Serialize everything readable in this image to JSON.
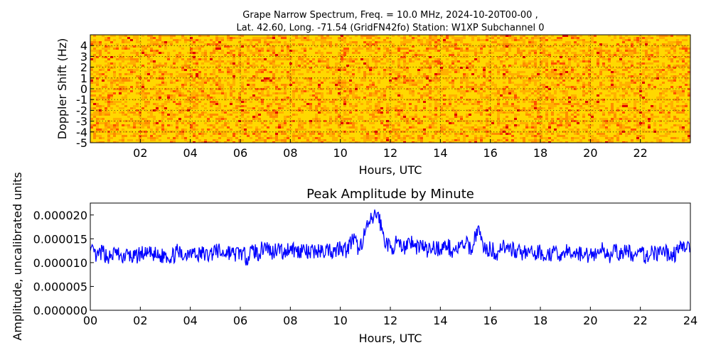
{
  "chart_data": [
    {
      "type": "heatmap",
      "title_line1": "Grape Narrow Spectrum, Freq. = 10.0 MHz, 2024-10-20T00-00 ,",
      "title_line2": "Lat.  42.60, Long. -71.54 (GridFN42fo) Station: W1XP Subchannel 0",
      "xlabel": "Hours, UTC",
      "ylabel": "Doppler Shift (Hz)",
      "xlim": [
        0,
        24
      ],
      "ylim": [
        -5,
        5
      ],
      "xticks": [
        "02",
        "04",
        "06",
        "08",
        "10",
        "12",
        "14",
        "16",
        "18",
        "20",
        "22"
      ],
      "xtick_values": [
        2,
        4,
        6,
        8,
        10,
        12,
        14,
        16,
        18,
        20,
        22
      ],
      "yticks": [
        "4",
        "3",
        "2",
        "1",
        "0",
        "-1",
        "-2",
        "-3",
        "-4",
        "-5"
      ],
      "ytick_values": [
        4,
        3,
        2,
        1,
        0,
        -1,
        -2,
        -3,
        -4,
        -5
      ],
      "grid": true,
      "colors": [
        "#ffd800",
        "#ffb000",
        "#ff8c00",
        "#ff5000",
        "#e00000"
      ]
    },
    {
      "type": "line",
      "title": "Peak Amplitude by Minute",
      "xlabel": "Hours, UTC",
      "ylabel": "Amplitude, uncalibrated units",
      "xlim": [
        0,
        24
      ],
      "ylim": [
        0,
        2.25e-05
      ],
      "xticks": [
        "00",
        "02",
        "04",
        "06",
        "08",
        "10",
        "12",
        "14",
        "16",
        "18",
        "20",
        "22",
        "24"
      ],
      "xtick_values": [
        0,
        2,
        4,
        6,
        8,
        10,
        12,
        14,
        16,
        18,
        20,
        22,
        24
      ],
      "yticks": [
        "0.000000",
        "0.000005",
        "0.000010",
        "0.000015",
        "0.000020"
      ],
      "ytick_values": [
        0,
        5e-06,
        1e-05,
        1.5e-05,
        2e-05
      ],
      "grid": false,
      "line_color": "#0000ff",
      "series": [
        {
          "x": [
            0.0,
            0.25,
            0.5,
            0.75,
            1.0,
            1.25,
            1.5,
            1.75,
            2.0,
            2.25,
            2.5,
            2.75,
            3.0,
            3.25,
            3.5,
            3.75,
            4.0,
            4.25,
            4.5,
            4.75,
            5.0,
            5.25,
            5.5,
            5.75,
            6.0,
            6.25,
            6.5,
            6.75,
            7.0,
            7.25,
            7.5,
            7.75,
            8.0,
            8.25,
            8.5,
            8.75,
            9.0,
            9.25,
            9.5,
            9.75,
            10.0,
            10.25,
            10.5,
            10.75,
            11.0,
            11.25,
            11.5,
            11.75,
            12.0,
            12.25,
            12.5,
            12.75,
            13.0,
            13.25,
            13.5,
            13.75,
            14.0,
            14.25,
            14.5,
            14.75,
            15.0,
            15.25,
            15.5,
            15.75,
            16.0,
            16.25,
            16.5,
            16.75,
            17.0,
            17.25,
            17.5,
            17.75,
            18.0,
            18.25,
            18.5,
            18.75,
            19.0,
            19.25,
            19.5,
            19.75,
            20.0,
            20.25,
            20.5,
            20.75,
            21.0,
            21.25,
            21.5,
            21.75,
            22.0,
            22.25,
            22.5,
            22.75,
            23.0,
            23.25,
            23.5,
            23.75,
            24.0
          ],
          "y": [
            1.25e-05,
            1.13e-05,
            1.22e-05,
            1.1e-05,
            1.2e-05,
            1.12e-05,
            1.18e-05,
            1.08e-05,
            1.21e-05,
            1.14e-05,
            1.19e-05,
            1.1e-05,
            1.17e-05,
            1.12e-05,
            1.23e-05,
            1.11e-05,
            1.28e-05,
            1.15e-05,
            1.2e-05,
            1.13e-05,
            1.3e-05,
            1.18e-05,
            1.24e-05,
            1.16e-05,
            1.22e-05,
            1.1e-05,
            1.26e-05,
            1.19e-05,
            1.38e-05,
            1.21e-05,
            1.32e-05,
            1.18e-05,
            1.35e-05,
            1.22e-05,
            1.29e-05,
            1.17e-05,
            1.27e-05,
            1.2e-05,
            1.31e-05,
            1.23e-05,
            1.35e-05,
            1.25e-05,
            1.5e-05,
            1.28e-05,
            1.65e-05,
            1.9e-05,
            2.05e-05,
            1.5e-05,
            1.3e-05,
            1.4e-05,
            1.26e-05,
            1.5e-05,
            1.32e-05,
            1.38e-05,
            1.24e-05,
            1.34e-05,
            1.28e-05,
            1.36e-05,
            1.25e-05,
            1.31e-05,
            1.4e-05,
            1.27e-05,
            1.75e-05,
            1.25e-05,
            1.3e-05,
            1.19e-05,
            1.4e-05,
            1.22e-05,
            1.28e-05,
            1.18e-05,
            1.26e-05,
            1.15e-05,
            1.23e-05,
            1.14e-05,
            1.2e-05,
            1.13e-05,
            1.24e-05,
            1.17e-05,
            1.21e-05,
            1.12e-05,
            1.2e-05,
            1.18e-05,
            1.28e-05,
            1.16e-05,
            1.22e-05,
            1.18e-05,
            1.25e-05,
            1.14e-05,
            1.21e-05,
            1.12e-05,
            1.24e-05,
            1.16e-05,
            1.22e-05,
            1.14e-05,
            1.23e-05,
            1.4e-05,
            1.3e-05
          ]
        }
      ]
    }
  ]
}
